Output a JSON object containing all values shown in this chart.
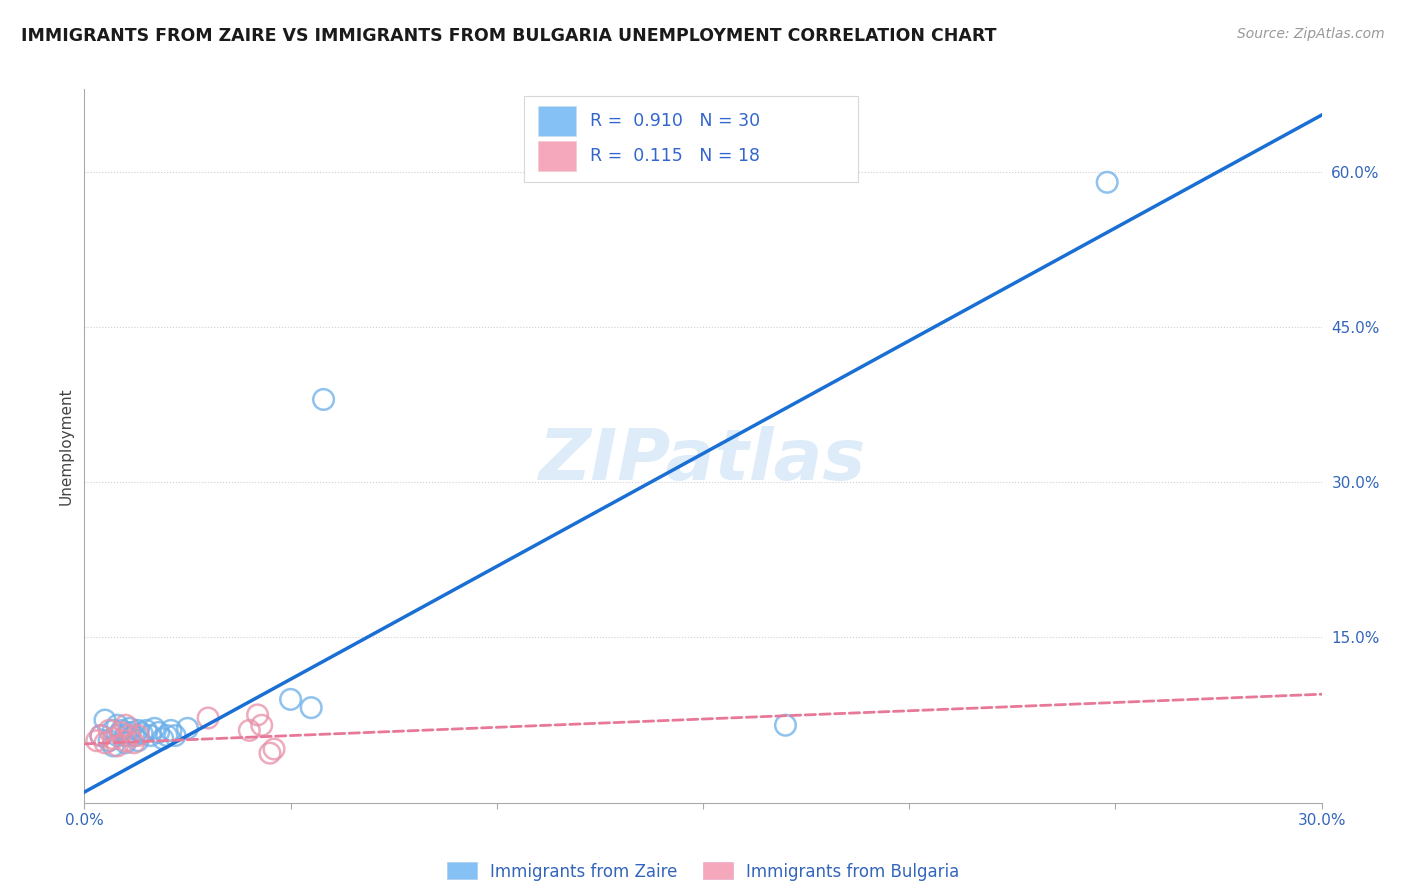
{
  "title": "IMMIGRANTS FROM ZAIRE VS IMMIGRANTS FROM BULGARIA UNEMPLOYMENT CORRELATION CHART",
  "source": "Source: ZipAtlas.com",
  "ylabel": "Unemployment",
  "xlim": [
    0.0,
    0.3
  ],
  "ylim": [
    -0.01,
    0.68
  ],
  "xticks": [
    0.0,
    0.05,
    0.1,
    0.15,
    0.2,
    0.25,
    0.3
  ],
  "zaire_color": "#85c1f5",
  "zaire_edge_color": "#6aaee8",
  "bulgaria_color": "#f5a8bc",
  "bulgaria_edge_color": "#e890a8",
  "zaire_line_color": "#1a6fd4",
  "bulgaria_line_color": "#e87898",
  "legend_label1": "Immigrants from Zaire",
  "legend_label2": "Immigrants from Bulgaria",
  "zaire_points": [
    [
      0.004,
      0.055
    ],
    [
      0.005,
      0.07
    ],
    [
      0.006,
      0.05
    ],
    [
      0.007,
      0.06
    ],
    [
      0.007,
      0.045
    ],
    [
      0.008,
      0.065
    ],
    [
      0.008,
      0.055
    ],
    [
      0.009,
      0.06
    ],
    [
      0.01,
      0.055
    ],
    [
      0.01,
      0.048
    ],
    [
      0.011,
      0.062
    ],
    [
      0.011,
      0.058
    ],
    [
      0.012,
      0.055
    ],
    [
      0.013,
      0.06
    ],
    [
      0.013,
      0.05
    ],
    [
      0.014,
      0.057
    ],
    [
      0.015,
      0.06
    ],
    [
      0.016,
      0.055
    ],
    [
      0.017,
      0.062
    ],
    [
      0.018,
      0.058
    ],
    [
      0.019,
      0.052
    ],
    [
      0.02,
      0.055
    ],
    [
      0.021,
      0.06
    ],
    [
      0.022,
      0.055
    ],
    [
      0.025,
      0.062
    ],
    [
      0.05,
      0.09
    ],
    [
      0.055,
      0.082
    ],
    [
      0.058,
      0.38
    ],
    [
      0.17,
      0.065
    ],
    [
      0.248,
      0.59
    ]
  ],
  "bulgaria_points": [
    [
      0.003,
      0.05
    ],
    [
      0.004,
      0.055
    ],
    [
      0.005,
      0.048
    ],
    [
      0.006,
      0.06
    ],
    [
      0.007,
      0.052
    ],
    [
      0.008,
      0.045
    ],
    [
      0.009,
      0.058
    ],
    [
      0.01,
      0.05
    ],
    [
      0.01,
      0.065
    ],
    [
      0.011,
      0.055
    ],
    [
      0.012,
      0.048
    ],
    [
      0.013,
      0.055
    ],
    [
      0.03,
      0.072
    ],
    [
      0.04,
      0.06
    ],
    [
      0.042,
      0.075
    ],
    [
      0.043,
      0.065
    ],
    [
      0.045,
      0.038
    ],
    [
      0.046,
      0.042
    ]
  ],
  "zaire_line_x": [
    -0.002,
    0.3
  ],
  "zaire_line_y": [
    -0.004,
    0.655
  ],
  "bulgaria_line_x": [
    0.0,
    0.3
  ],
  "bulgaria_line_y": [
    0.047,
    0.095
  ],
  "watermark": "ZIPatlas",
  "background_color": "#ffffff",
  "grid_color": "#d0d0d0",
  "right_yticks": [
    0.15,
    0.3,
    0.45,
    0.6
  ],
  "right_ylabels": [
    "15.0%",
    "30.0%",
    "45.0%",
    "60.0%"
  ]
}
